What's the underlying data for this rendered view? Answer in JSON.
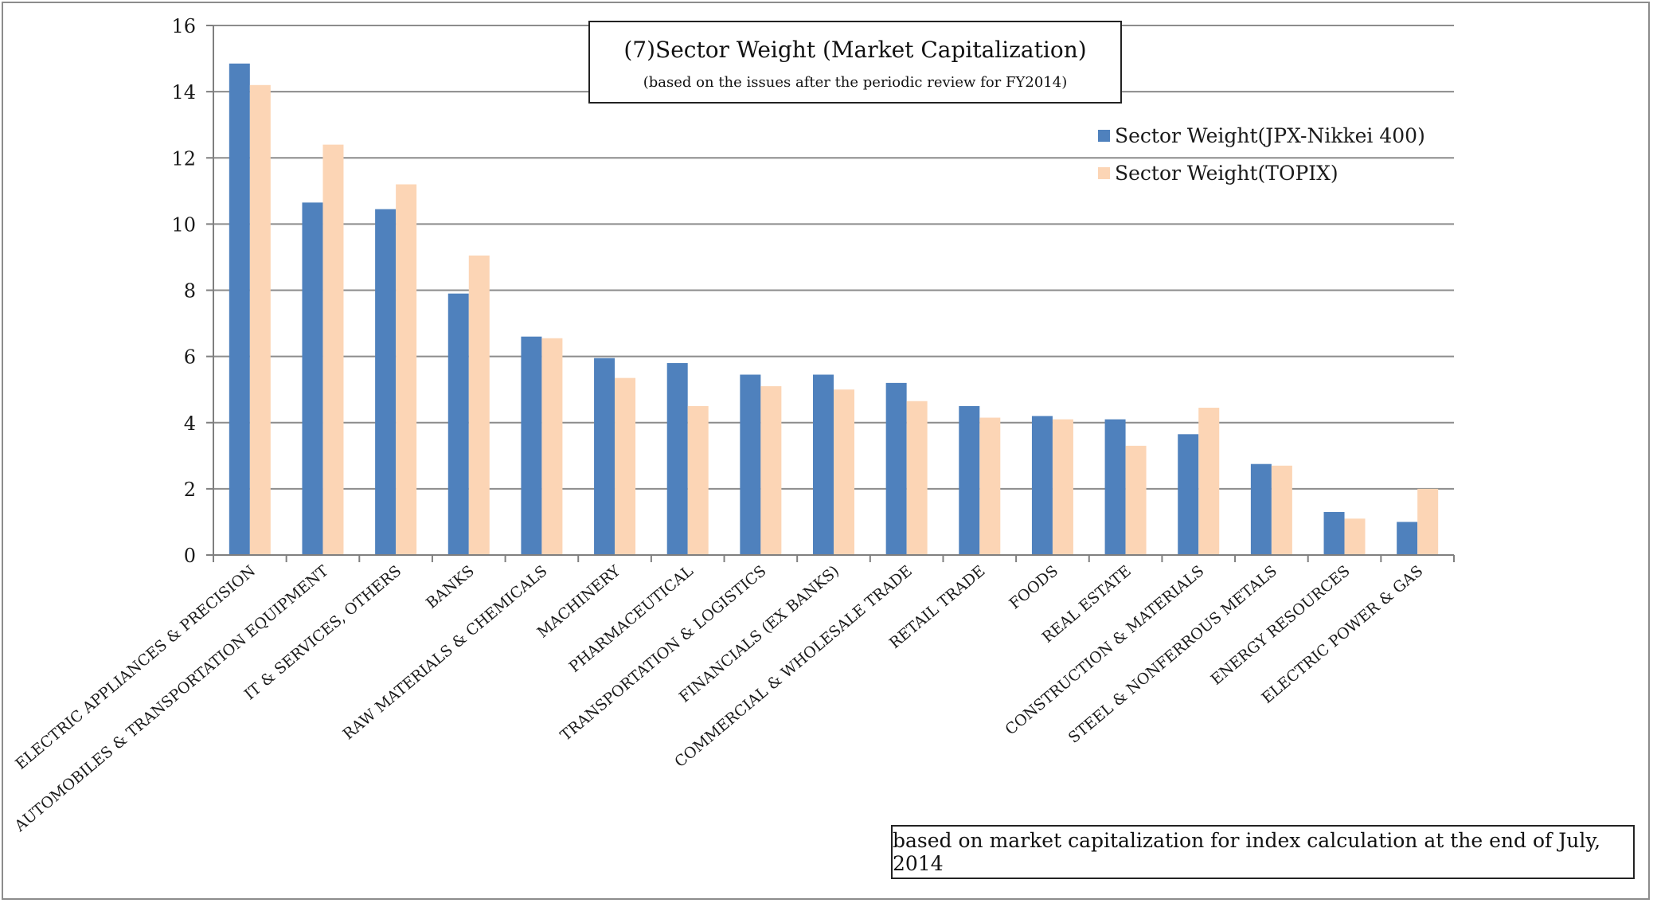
{
  "chart_data": {
    "type": "bar",
    "title": "(7)Sector Weight (Market Capitalization)",
    "subtitle": "(based on the issues after the periodic review for FY2014)",
    "note": "based on market capitalization for index calculation at the end of July, 2014",
    "xlabel": "",
    "ylabel": "",
    "ylim": [
      0,
      16
    ],
    "yticks": [
      0,
      2,
      4,
      6,
      8,
      10,
      12,
      14,
      16
    ],
    "grid": true,
    "legend_position": "top-right",
    "categories": [
      "ELECTRIC APPLIANCES & PRECISION",
      "AUTOMOBILES & TRANSPORTATION EQUIPMENT",
      "IT & SERVICES, OTHERS",
      "BANKS",
      "RAW MATERIALS & CHEMICALS",
      "MACHINERY",
      "PHARMACEUTICAL",
      "TRANSPORTATION & LOGISTICS",
      "FINANCIALS (EX BANKS)",
      "COMMERCIAL & WHOLESALE TRADE",
      "RETAIL TRADE",
      "FOODS",
      "REAL ESTATE",
      "CONSTRUCTION & MATERIALS",
      "STEEL & NONFERROUS METALS",
      "ENERGY RESOURCES",
      "ELECTRIC POWER & GAS"
    ],
    "series": [
      {
        "name": "Sector Weight(JPX-Nikkei 400)",
        "color": "#4f81bd",
        "values": [
          14.85,
          10.65,
          10.45,
          7.9,
          6.6,
          5.95,
          5.8,
          5.45,
          5.45,
          5.2,
          4.5,
          4.2,
          4.1,
          3.65,
          2.75,
          1.3,
          1.0
        ]
      },
      {
        "name": "Sector Weight(TOPIX)",
        "color": "#fcd5b5",
        "values": [
          14.2,
          12.4,
          11.2,
          9.05,
          6.55,
          5.35,
          4.5,
          5.1,
          5.0,
          4.65,
          4.15,
          4.1,
          3.3,
          4.45,
          2.7,
          1.1,
          2.0
        ]
      }
    ]
  },
  "colors": {
    "axis": "#7f7f7f",
    "grid": "#8c8c8c"
  }
}
